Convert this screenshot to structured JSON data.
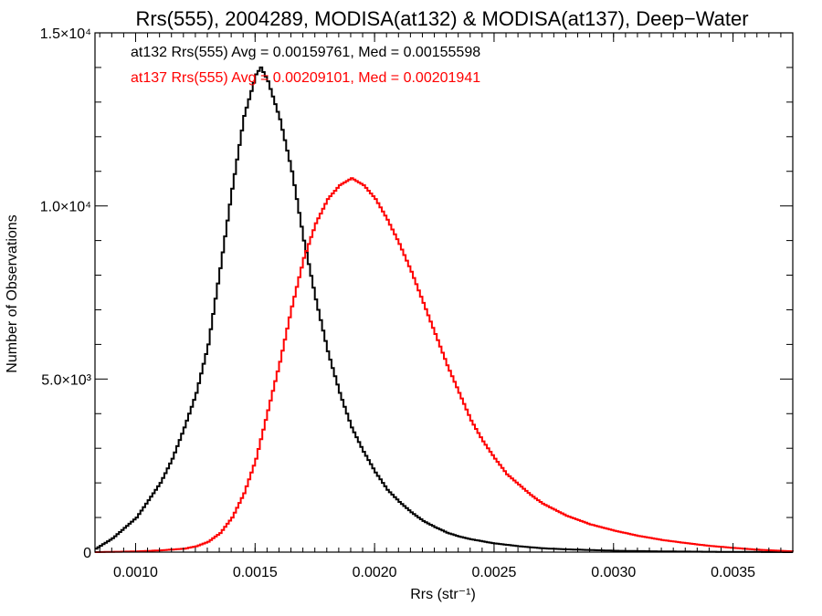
{
  "chart_data": {
    "type": "line",
    "title": "Rrs(555), 2004289, MODISA(at132) & MODISA(at137), Deep−Water",
    "xlabel": "Rrs (str⁻¹)",
    "ylabel": "Number of Observations",
    "xlim": [
      0.00083,
      0.00375
    ],
    "ylim": [
      0,
      15000
    ],
    "x_ticks": [
      {
        "value": 0.001,
        "label": "0.0010"
      },
      {
        "value": 0.0015,
        "label": "0.0015"
      },
      {
        "value": 0.002,
        "label": "0.0020"
      },
      {
        "value": 0.0025,
        "label": "0.0025"
      },
      {
        "value": 0.003,
        "label": "0.0030"
      },
      {
        "value": 0.0035,
        "label": "0.0035"
      }
    ],
    "y_ticks": [
      {
        "value": 0,
        "label": "0"
      },
      {
        "value": 5000,
        "label": "5.0×10³"
      },
      {
        "value": 10000,
        "label": "1.0×10⁴"
      },
      {
        "value": 15000,
        "label": "1.5×10⁴"
      }
    ],
    "grid": false,
    "legend": "top-left",
    "series": [
      {
        "name": "at132 Rrs(555) Avg = 0.00159761, Med = 0.00155598",
        "color": "#000000",
        "x": [
          0.00083,
          0.0009,
          0.00095,
          0.001,
          0.00105,
          0.0011,
          0.00115,
          0.0012,
          0.00125,
          0.0013,
          0.00135,
          0.0014,
          0.00145,
          0.0015,
          0.00152,
          0.00155,
          0.0016,
          0.00165,
          0.0017,
          0.00175,
          0.0018,
          0.00185,
          0.0019,
          0.00195,
          0.002,
          0.00205,
          0.0021,
          0.00215,
          0.0022,
          0.00225,
          0.0023,
          0.00235,
          0.0024,
          0.0025,
          0.0026,
          0.0027,
          0.0028,
          0.003,
          0.0032,
          0.0034,
          0.00375
        ],
        "y": [
          100,
          400,
          700,
          1000,
          1500,
          2000,
          2700,
          3600,
          4600,
          6000,
          8200,
          10500,
          12600,
          13800,
          14000,
          13600,
          12500,
          11000,
          9000,
          7300,
          5800,
          4600,
          3600,
          2900,
          2300,
          1800,
          1450,
          1150,
          900,
          720,
          560,
          450,
          370,
          250,
          170,
          110,
          80,
          40,
          20,
          10,
          0
        ]
      },
      {
        "name": "at137 Rrs(555) Avg = 0.00209101, Med = 0.00201941",
        "color": "#ff0000",
        "x": [
          0.00083,
          0.001,
          0.0011,
          0.0012,
          0.00125,
          0.0013,
          0.00135,
          0.0014,
          0.00145,
          0.0015,
          0.00155,
          0.0016,
          0.00165,
          0.0017,
          0.00175,
          0.0018,
          0.00185,
          0.0019,
          0.00195,
          0.002,
          0.00205,
          0.0021,
          0.00215,
          0.0022,
          0.00225,
          0.0023,
          0.00235,
          0.0024,
          0.00245,
          0.0025,
          0.00255,
          0.0026,
          0.00265,
          0.0027,
          0.0028,
          0.0029,
          0.003,
          0.0031,
          0.0032,
          0.0033,
          0.0034,
          0.0035,
          0.0036,
          0.00375
        ],
        "y": [
          0,
          20,
          50,
          100,
          170,
          300,
          550,
          1000,
          1700,
          2700,
          4100,
          5500,
          7100,
          8500,
          9500,
          10200,
          10600,
          10800,
          10600,
          10200,
          9600,
          8900,
          8100,
          7200,
          6300,
          5400,
          4600,
          3800,
          3200,
          2700,
          2250,
          1950,
          1650,
          1400,
          1050,
          800,
          620,
          470,
          350,
          260,
          180,
          120,
          70,
          20
        ]
      }
    ]
  }
}
